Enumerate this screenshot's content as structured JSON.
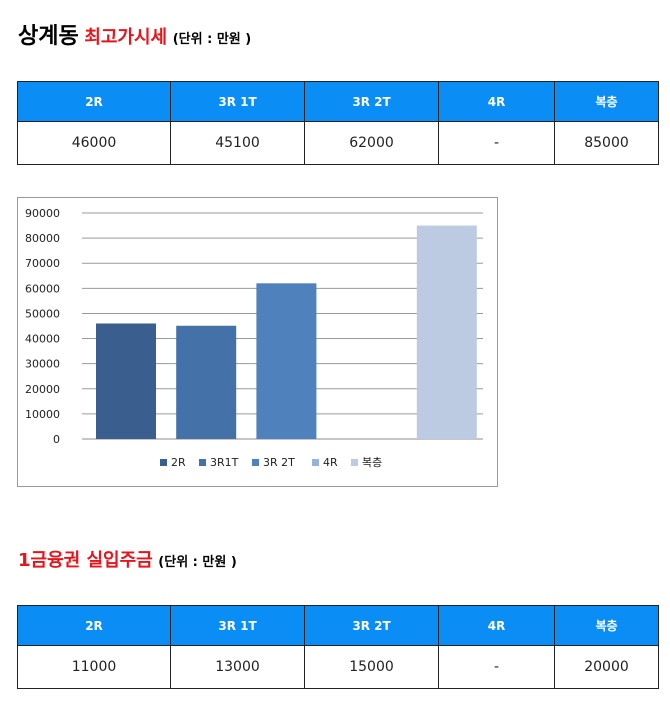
{
  "section1": {
    "title": "상계동",
    "subtitle": "최고가시세",
    "unit": "(단위 : 만원 )"
  },
  "table1": {
    "headers": [
      "2R",
      "3R 1T",
      "3R 2T",
      "4R",
      "복층"
    ],
    "values": [
      "46000",
      "45100",
      "62000",
      "-",
      "85000"
    ]
  },
  "section2": {
    "title": "1금융권 실입주금",
    "unit": "(단위 : 만원 )"
  },
  "table2": {
    "headers": [
      "2R",
      "3R 1T",
      "3R 2T",
      "4R",
      "복층"
    ],
    "values": [
      "11000",
      "13000",
      "15000",
      "-",
      "20000"
    ]
  },
  "chart_data": {
    "type": "bar",
    "categories": [
      "2R",
      "3R1T",
      "3R 2T",
      "4R",
      "복층"
    ],
    "values": [
      46000,
      45100,
      62000,
      null,
      85000
    ],
    "colors": [
      "#3a5f8f",
      "#4472a8",
      "#4f81bd",
      "#95b3d7",
      "#bccbe2"
    ],
    "yticks": [
      "90000",
      "80000",
      "70000",
      "60000",
      "50000",
      "40000",
      "30000",
      "20000",
      "10000",
      "0"
    ],
    "ylim": [
      0,
      90000
    ],
    "grid": true,
    "legend": "bottom",
    "title": "",
    "xlabel": "",
    "ylabel": ""
  }
}
